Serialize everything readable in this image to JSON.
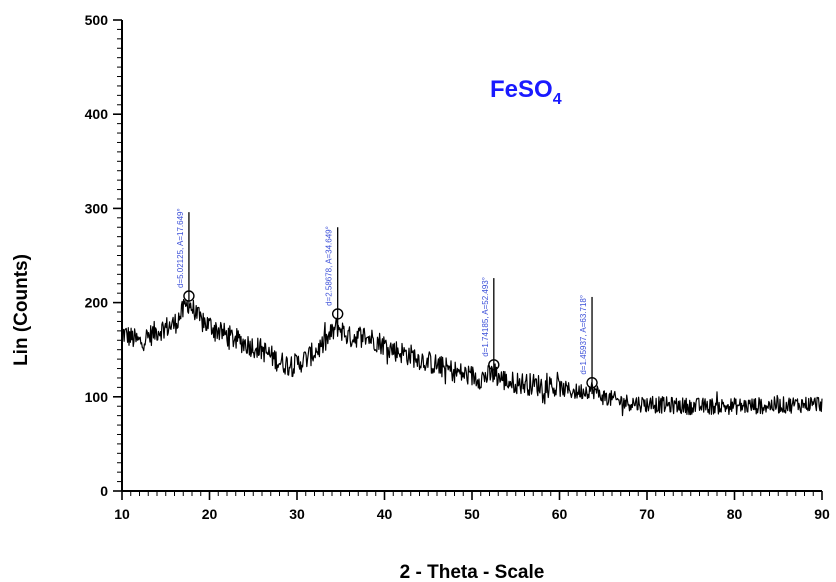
{
  "chart_data": {
    "type": "line",
    "title_base": "FeSO",
    "title_subscript": "4",
    "xlabel": "2 - Theta - Scale",
    "ylabel": "Lin (Counts)",
    "xlim": [
      10,
      90
    ],
    "ylim": [
      0,
      500
    ],
    "x_ticks": [
      10,
      20,
      30,
      40,
      50,
      60,
      70,
      80,
      90
    ],
    "y_ticks": [
      0,
      100,
      200,
      300,
      400,
      500
    ],
    "grid": false,
    "title_color": "#1a1aff",
    "peak_label_color": "#3b4fd8",
    "line_color": "#000000",
    "baseline": [
      [
        10,
        168
      ],
      [
        12,
        158
      ],
      [
        14,
        170
      ],
      [
        16,
        177
      ],
      [
        17.6,
        200
      ],
      [
        19,
        180
      ],
      [
        20,
        176
      ],
      [
        22,
        165
      ],
      [
        24,
        157
      ],
      [
        26,
        150
      ],
      [
        28,
        137
      ],
      [
        29.5,
        133
      ],
      [
        31,
        140
      ],
      [
        33,
        155
      ],
      [
        34.6,
        175
      ],
      [
        36,
        163
      ],
      [
        37.5,
        165
      ],
      [
        39,
        160
      ],
      [
        41,
        150
      ],
      [
        43,
        144
      ],
      [
        45,
        137
      ],
      [
        47,
        130
      ],
      [
        49,
        124
      ],
      [
        51,
        120
      ],
      [
        52.5,
        124
      ],
      [
        54,
        116
      ],
      [
        56,
        114
      ],
      [
        58,
        112
      ],
      [
        60,
        109
      ],
      [
        62,
        105
      ],
      [
        63.7,
        108
      ],
      [
        65,
        100
      ],
      [
        67,
        95
      ],
      [
        70,
        92
      ],
      [
        75,
        90
      ],
      [
        80,
        90
      ],
      [
        85,
        91
      ],
      [
        90,
        93
      ]
    ],
    "noise_amplitude": 12,
    "peaks": [
      {
        "x": 17.649,
        "top": 296,
        "marker": 207,
        "label": "d=5.02125, A=17.649°"
      },
      {
        "x": 34.649,
        "top": 280,
        "marker": 188,
        "label": "d=2.58678, A=34.649°"
      },
      {
        "x": 52.493,
        "top": 226,
        "marker": 134,
        "label": "d=1.74185, A=52.493°"
      },
      {
        "x": 63.718,
        "top": 206,
        "marker": 115,
        "label": "d=1.45937, A=63.718°"
      }
    ]
  }
}
